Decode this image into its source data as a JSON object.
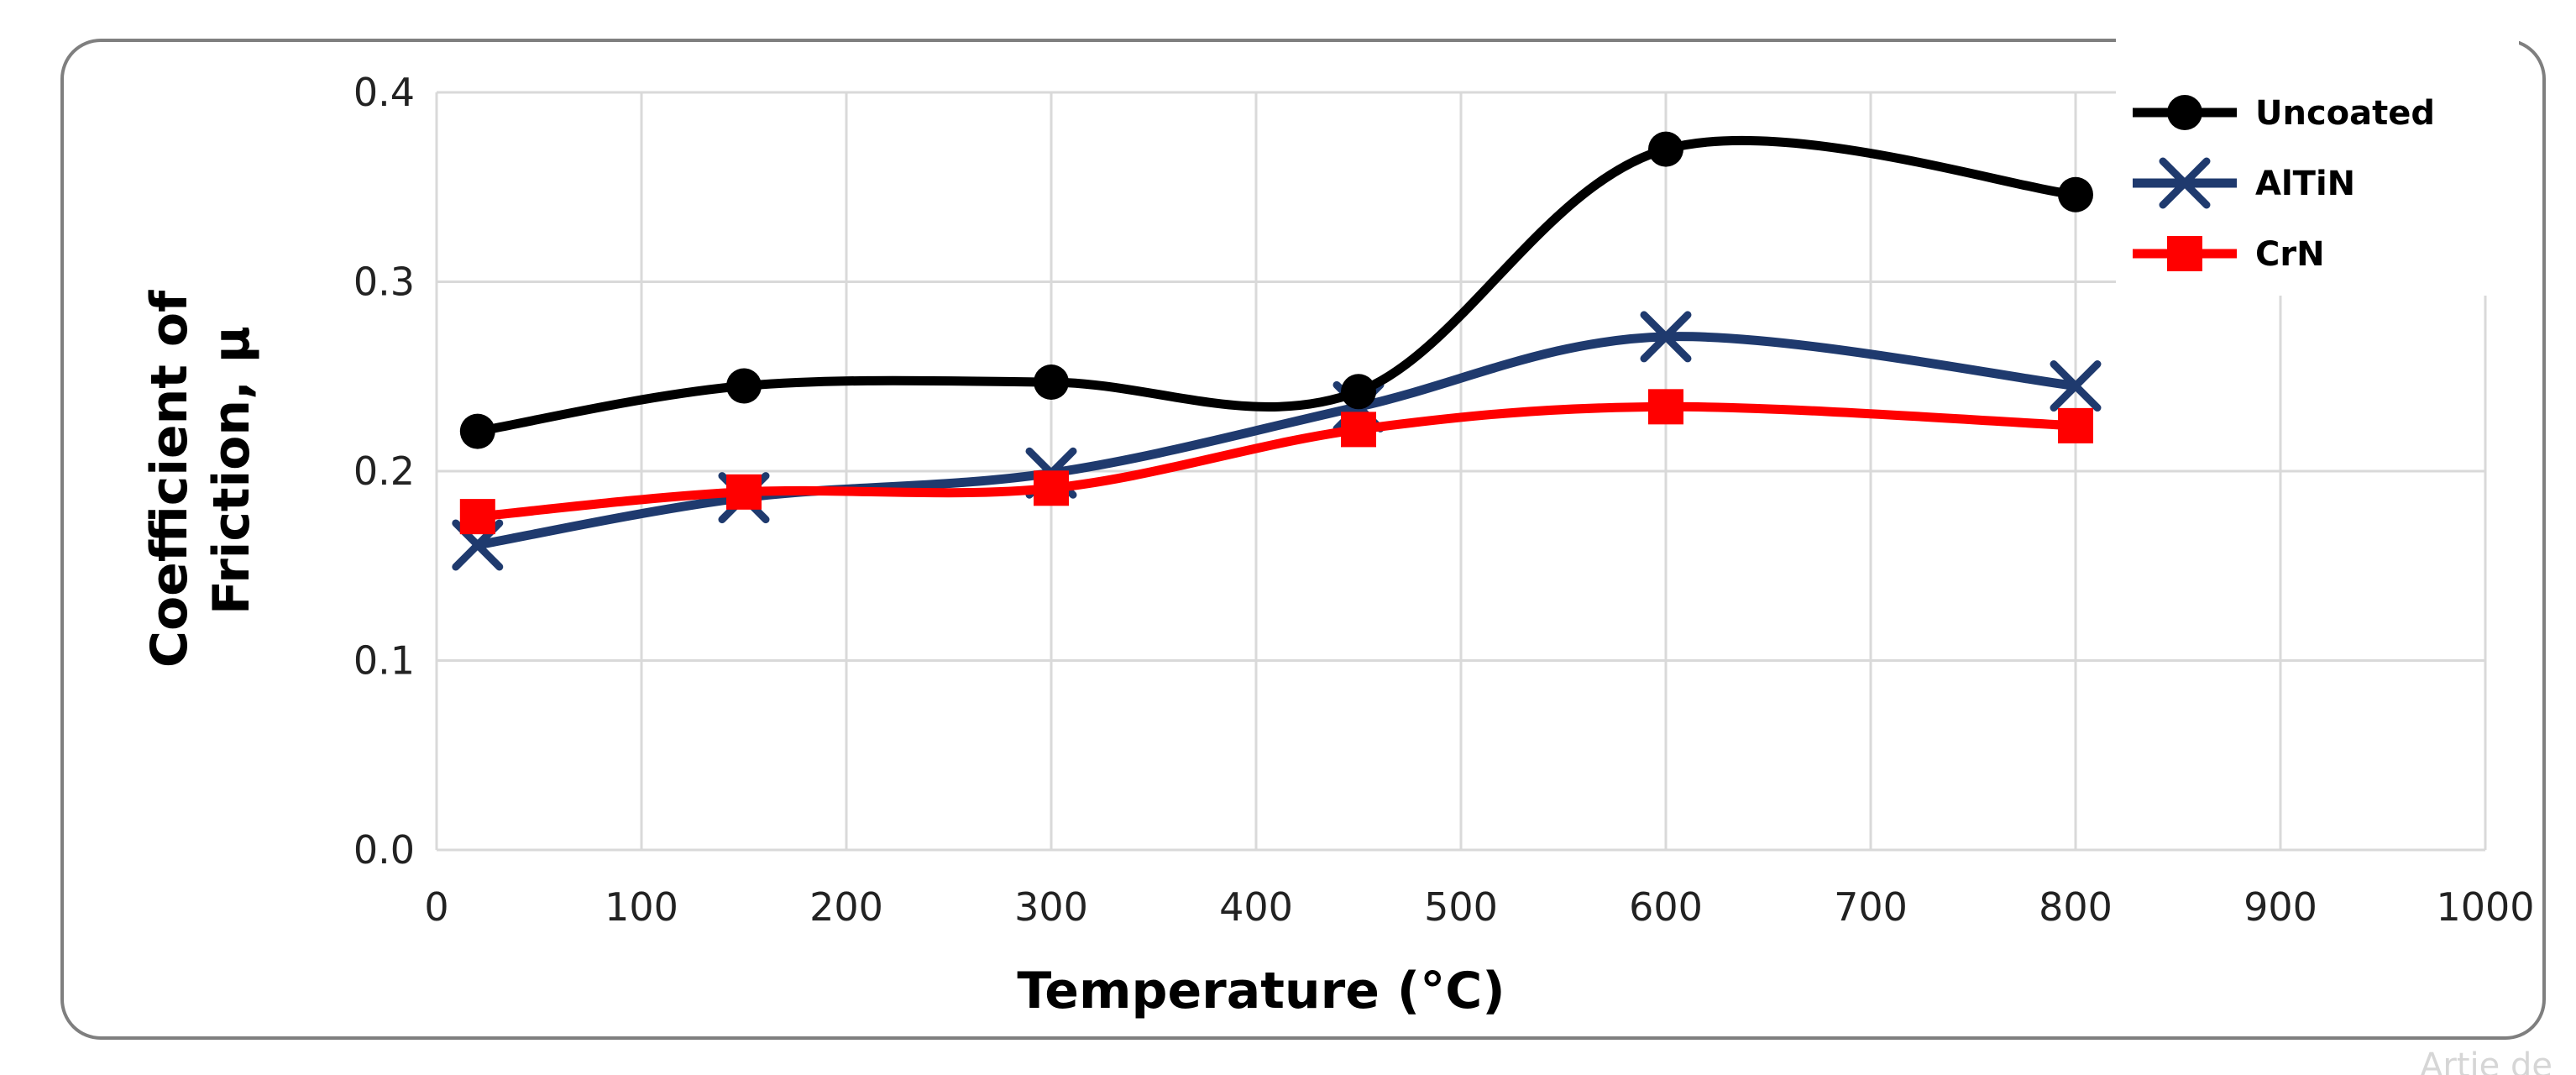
{
  "chart_data": {
    "type": "line",
    "title": "",
    "xlabel": "Temperature (°C)",
    "ylabel_lines": [
      "Coefficient of",
      "Friction, μ"
    ],
    "xlim": [
      0,
      1000
    ],
    "ylim": [
      0.0,
      0.4
    ],
    "x_ticks": [
      "0",
      "100",
      "200",
      "300",
      "400",
      "500",
      "600",
      "700",
      "800",
      "900",
      "1000"
    ],
    "y_ticks": [
      "0.0",
      "0.1",
      "0.2",
      "0.3",
      "0.4"
    ],
    "grid": true,
    "legend_position": "top-right",
    "series": [
      {
        "name": "Uncoated",
        "color": "#000000",
        "marker": "circle",
        "x": [
          20,
          150,
          300,
          450,
          600,
          800
        ],
        "y": [
          0.221,
          0.245,
          0.247,
          0.242,
          0.37,
          0.346
        ]
      },
      {
        "name": "AlTiN",
        "color": "#1f3a6e",
        "marker": "x",
        "x": [
          20,
          150,
          300,
          450,
          600,
          800
        ],
        "y": [
          0.161,
          0.186,
          0.199,
          0.234,
          0.271,
          0.245
        ]
      },
      {
        "name": "CrN",
        "color": "#ff0000",
        "marker": "square",
        "x": [
          20,
          150,
          300,
          450,
          600,
          800
        ],
        "y": [
          0.176,
          0.189,
          0.191,
          0.222,
          0.234,
          0.224
        ]
      }
    ]
  },
  "watermark": "Artie de"
}
